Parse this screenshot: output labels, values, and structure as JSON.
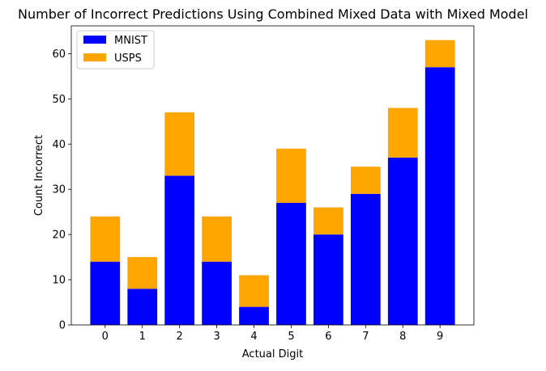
{
  "chart_data": {
    "type": "bar",
    "stacked": true,
    "title": "Number of Incorrect Predictions Using Combined Mixed Data with Mixed Model",
    "xlabel": "Actual Digit",
    "ylabel": "Count Incorrect",
    "categories": [
      "0",
      "1",
      "2",
      "3",
      "4",
      "5",
      "6",
      "7",
      "8",
      "9"
    ],
    "series": [
      {
        "name": "MNIST",
        "color": "#0000ff",
        "values": [
          14,
          8,
          33,
          14,
          4,
          27,
          20,
          29,
          37,
          57
        ]
      },
      {
        "name": "USPS",
        "color": "#ffa500",
        "values": [
          10,
          7,
          14,
          10,
          7,
          12,
          6,
          6,
          11,
          6
        ]
      }
    ],
    "yticks": [
      "0",
      "10",
      "20",
      "30",
      "40",
      "50",
      "60"
    ],
    "ylim": [
      0,
      66.15
    ],
    "grid": false,
    "legend": "top-left"
  }
}
